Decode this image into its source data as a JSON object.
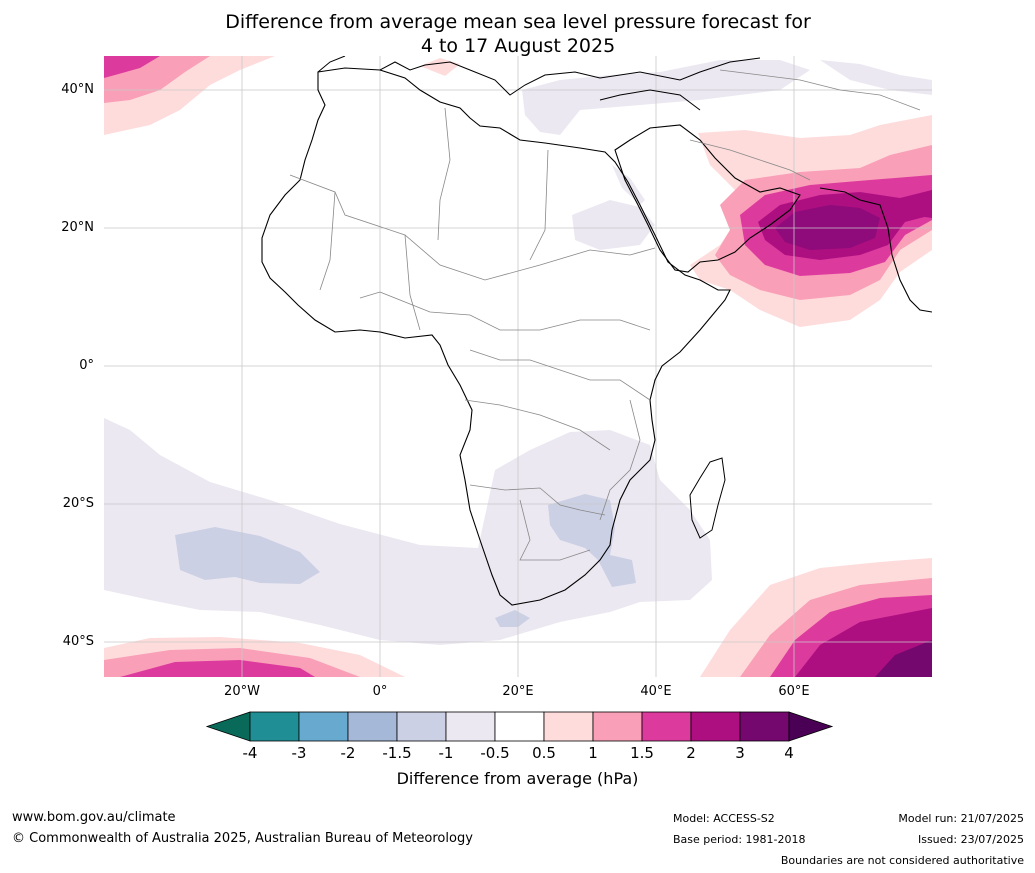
{
  "title_line1": "Difference from average mean sea level pressure forecast for",
  "title_line2": "4 to 17 August 2025",
  "lat_labels": [
    "40°N",
    "20°N",
    "0°",
    "20°S",
    "40°S"
  ],
  "lon_labels": [
    "20°W",
    "0°",
    "20°E",
    "40°E",
    "60°E"
  ],
  "colorbar": {
    "ticks": [
      "-4",
      "-3",
      "-2",
      "-1.5",
      "-1",
      "-0.5",
      "0.5",
      "1",
      "1.5",
      "2",
      "3",
      "4"
    ],
    "colors": [
      "#0a6a5a",
      "#1f8f95",
      "#68a9d0",
      "#a5b8d8",
      "#ccd0e4",
      "#ece8f1",
      "#ffffff",
      "#fedcdc",
      "#f99fb7",
      "#dd3a9e",
      "#ad0f81",
      "#75086f",
      "#4a0054"
    ],
    "title": "Difference from average (hPa)"
  },
  "footer": {
    "url": "www.bom.gov.au/climate",
    "copyright": "© Commonwealth of Australia 2025, Australian Bureau of Meteorology",
    "model": "Model: ACCESS-S2",
    "base_period": "Base period: 1981-2018",
    "model_run": "Model run: 21/07/2025",
    "issued": "Issued: 23/07/2025",
    "disclaimer": "Boundaries are not considered authoritative"
  }
}
